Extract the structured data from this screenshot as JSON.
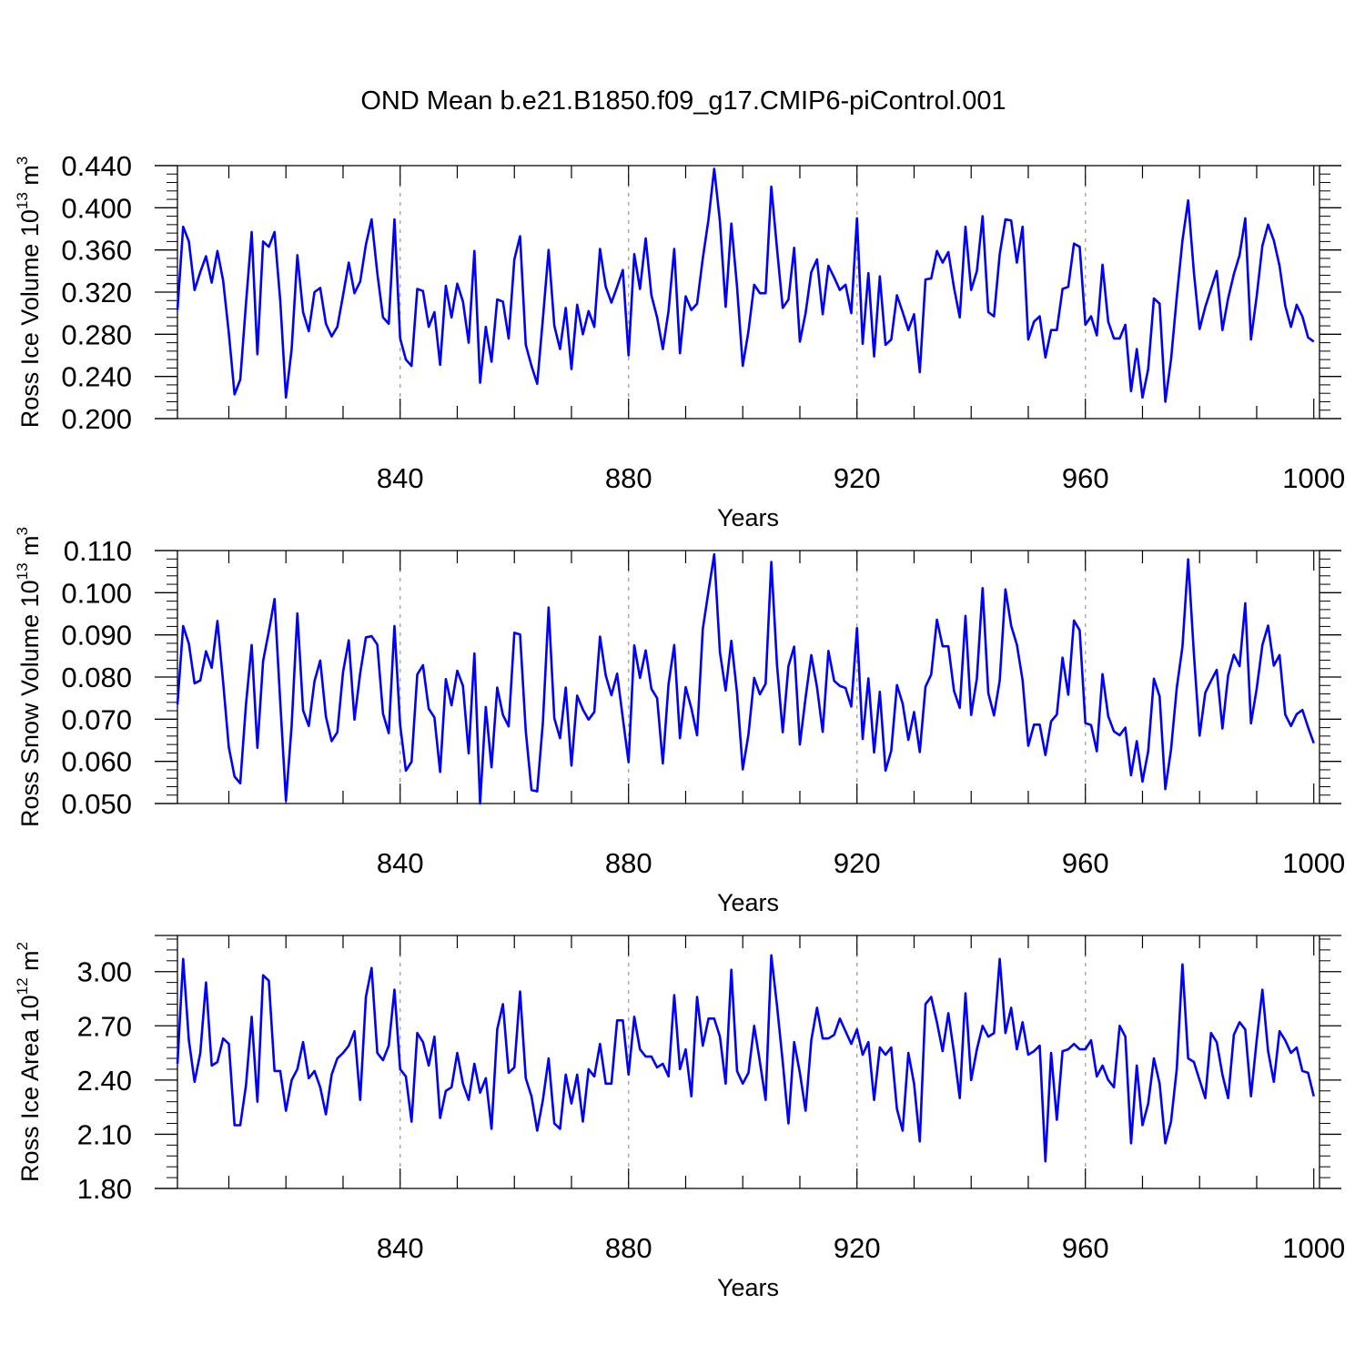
{
  "title": "OND Mean b.e21.B1850.f09_g17.CMIP6-piControl.001",
  "colors": {
    "line": "#0000ff",
    "axes": "#000000",
    "ref_lines": "#aaaaaa"
  },
  "chart_data": [
    {
      "type": "line",
      "ylabel_main": "Ross Ice Volume 10",
      "ylabel_exp": "13",
      "ylabel_unit": " m",
      "ylabel_unit_exp": "3",
      "xlabel": "Years",
      "xlim": [
        801,
        1001
      ],
      "ylim": [
        0.2,
        0.44
      ],
      "yticks": [
        0.2,
        0.24,
        0.28,
        0.32,
        0.36,
        0.4,
        0.44
      ],
      "ytick_labels": [
        "0.200",
        "0.240",
        "0.280",
        "0.320",
        "0.360",
        "0.400",
        "0.440"
      ],
      "xticks": [
        840,
        880,
        920,
        960,
        1000
      ],
      "xtick_labels": [
        "840",
        "880",
        "920",
        "960",
        "1000"
      ],
      "ref_lines_x": [
        840,
        880,
        920,
        960
      ],
      "x_start": 801,
      "values": [
        0.303,
        0.382,
        0.368,
        0.322,
        0.339,
        0.354,
        0.329,
        0.359,
        0.331,
        0.281,
        0.223,
        0.237,
        0.309,
        0.377,
        0.261,
        0.368,
        0.363,
        0.377,
        0.312,
        0.22,
        0.266,
        0.355,
        0.301,
        0.283,
        0.32,
        0.324,
        0.29,
        0.278,
        0.287,
        0.317,
        0.348,
        0.319,
        0.33,
        0.365,
        0.389,
        0.338,
        0.296,
        0.29,
        0.389,
        0.276,
        0.256,
        0.25,
        0.323,
        0.321,
        0.287,
        0.301,
        0.251,
        0.326,
        0.296,
        0.328,
        0.311,
        0.272,
        0.359,
        0.234,
        0.287,
        0.254,
        0.313,
        0.311,
        0.276,
        0.351,
        0.373,
        0.27,
        0.25,
        0.233,
        0.295,
        0.36,
        0.288,
        0.266,
        0.305,
        0.247,
        0.308,
        0.28,
        0.302,
        0.287,
        0.361,
        0.325,
        0.31,
        0.325,
        0.341,
        0.26,
        0.356,
        0.323,
        0.371,
        0.317,
        0.296,
        0.266,
        0.302,
        0.361,
        0.262,
        0.316,
        0.303,
        0.309,
        0.352,
        0.389,
        0.437,
        0.387,
        0.306,
        0.385,
        0.325,
        0.25,
        0.283,
        0.327,
        0.319,
        0.319,
        0.42,
        0.361,
        0.305,
        0.313,
        0.362,
        0.273,
        0.3,
        0.339,
        0.351,
        0.299,
        0.345,
        0.334,
        0.322,
        0.327,
        0.3,
        0.39,
        0.271,
        0.338,
        0.259,
        0.335,
        0.27,
        0.275,
        0.317,
        0.301,
        0.284,
        0.299,
        0.244,
        0.332,
        0.333,
        0.359,
        0.348,
        0.358,
        0.324,
        0.296,
        0.382,
        0.322,
        0.34,
        0.392,
        0.301,
        0.297,
        0.356,
        0.389,
        0.388,
        0.348,
        0.382,
        0.275,
        0.292,
        0.297,
        0.258,
        0.284,
        0.284,
        0.323,
        0.325,
        0.366,
        0.363,
        0.289,
        0.297,
        0.279,
        0.346,
        0.292,
        0.276,
        0.276,
        0.289,
        0.226,
        0.266,
        0.22,
        0.247,
        0.314,
        0.309,
        0.216,
        0.256,
        0.315,
        0.369,
        0.407,
        0.339,
        0.285,
        0.306,
        0.323,
        0.34,
        0.284,
        0.314,
        0.337,
        0.355,
        0.39,
        0.275,
        0.316,
        0.364,
        0.384,
        0.369,
        0.345,
        0.307,
        0.287,
        0.308,
        0.297,
        0.277,
        0.273
      ]
    },
    {
      "type": "line",
      "ylabel_main": "Ross Snow Volume 10",
      "ylabel_exp": "13",
      "ylabel_unit": " m",
      "ylabel_unit_exp": "3",
      "xlabel": "Years",
      "xlim": [
        801,
        1001
      ],
      "ylim": [
        0.05,
        0.11
      ],
      "yticks": [
        0.05,
        0.06,
        0.07,
        0.08,
        0.09,
        0.1,
        0.11
      ],
      "ytick_labels": [
        "0.050",
        "0.060",
        "0.070",
        "0.080",
        "0.090",
        "0.100",
        "0.110"
      ],
      "xticks": [
        840,
        880,
        920,
        960,
        1000
      ],
      "xtick_labels": [
        "840",
        "880",
        "920",
        "960",
        "1000"
      ],
      "ref_lines_x": [
        840,
        880,
        920,
        960
      ],
      "x_start": 801,
      "values": [
        0.0735,
        0.0921,
        0.0879,
        0.0785,
        0.0792,
        0.0861,
        0.0822,
        0.0933,
        0.0788,
        0.0633,
        0.0564,
        0.0548,
        0.0735,
        0.0876,
        0.0632,
        0.0838,
        0.0908,
        0.0985,
        0.0741,
        0.0507,
        0.0685,
        0.0951,
        0.0721,
        0.0684,
        0.079,
        0.0839,
        0.0706,
        0.0648,
        0.0669,
        0.0812,
        0.0887,
        0.0699,
        0.0809,
        0.0894,
        0.0897,
        0.0877,
        0.0713,
        0.0667,
        0.0921,
        0.0686,
        0.0578,
        0.0599,
        0.0806,
        0.0828,
        0.0725,
        0.0704,
        0.0575,
        0.0795,
        0.0733,
        0.0815,
        0.0779,
        0.0619,
        0.0856,
        0.05,
        0.0729,
        0.0586,
        0.0775,
        0.071,
        0.0683,
        0.0905,
        0.0901,
        0.0672,
        0.0532,
        0.0529,
        0.0693,
        0.0965,
        0.0702,
        0.0655,
        0.0775,
        0.059,
        0.0756,
        0.0723,
        0.0699,
        0.0717,
        0.0896,
        0.0804,
        0.0757,
        0.0808,
        0.0702,
        0.0598,
        0.0875,
        0.0798,
        0.0863,
        0.0772,
        0.075,
        0.0595,
        0.0783,
        0.0876,
        0.0655,
        0.0776,
        0.0726,
        0.0662,
        0.0914,
        0.1004,
        0.1091,
        0.0859,
        0.0768,
        0.0886,
        0.0762,
        0.0581,
        0.0664,
        0.0798,
        0.0759,
        0.0784,
        0.1073,
        0.0828,
        0.0669,
        0.0826,
        0.0872,
        0.064,
        0.0751,
        0.0852,
        0.0776,
        0.067,
        0.0862,
        0.0791,
        0.0779,
        0.0774,
        0.073,
        0.0916,
        0.0653,
        0.0797,
        0.0621,
        0.0765,
        0.0578,
        0.0625,
        0.0781,
        0.0737,
        0.0651,
        0.0717,
        0.0622,
        0.0777,
        0.0806,
        0.0936,
        0.0873,
        0.0873,
        0.0767,
        0.0727,
        0.0945,
        0.071,
        0.0797,
        0.1011,
        0.0762,
        0.0709,
        0.0792,
        0.1008,
        0.0922,
        0.0877,
        0.0793,
        0.0637,
        0.0687,
        0.0687,
        0.0615,
        0.0695,
        0.0711,
        0.0846,
        0.0758,
        0.0934,
        0.0911,
        0.0691,
        0.0686,
        0.0624,
        0.0807,
        0.0707,
        0.0671,
        0.0662,
        0.068,
        0.0567,
        0.0648,
        0.0552,
        0.0624,
        0.0796,
        0.0754,
        0.0534,
        0.0628,
        0.0774,
        0.0872,
        0.1079,
        0.0856,
        0.0661,
        0.0763,
        0.0791,
        0.0817,
        0.0678,
        0.0804,
        0.0853,
        0.0826,
        0.0975,
        0.069,
        0.0772,
        0.0876,
        0.0922,
        0.0827,
        0.0852,
        0.0711,
        0.0684,
        0.0712,
        0.0722,
        0.0681,
        0.0643
      ]
    },
    {
      "type": "line",
      "ylabel_main": "Ross Ice Area 10",
      "ylabel_exp": "12",
      "ylabel_unit": " m",
      "ylabel_unit_exp": "2",
      "xlabel": "Years",
      "xlim": [
        801,
        1001
      ],
      "ylim": [
        1.8,
        3.2
      ],
      "yticks": [
        1.8,
        2.1,
        2.4,
        2.7,
        3.0
      ],
      "ytick_labels": [
        "1.80",
        "2.10",
        "2.40",
        "2.70",
        "3.00"
      ],
      "xticks": [
        840,
        880,
        920,
        960,
        1000
      ],
      "xtick_labels": [
        "840",
        "880",
        "920",
        "960",
        "1000"
      ],
      "ref_lines_x": [
        840,
        880,
        920,
        960
      ],
      "x_start": 801,
      "values": [
        2.49,
        3.07,
        2.62,
        2.39,
        2.55,
        2.94,
        2.48,
        2.5,
        2.63,
        2.6,
        2.15,
        2.15,
        2.37,
        2.75,
        2.28,
        2.98,
        2.95,
        2.45,
        2.45,
        2.23,
        2.4,
        2.46,
        2.61,
        2.41,
        2.45,
        2.36,
        2.21,
        2.43,
        2.52,
        2.55,
        2.59,
        2.67,
        2.29,
        2.86,
        3.02,
        2.55,
        2.51,
        2.59,
        2.9,
        2.46,
        2.42,
        2.17,
        2.66,
        2.61,
        2.48,
        2.64,
        2.19,
        2.34,
        2.36,
        2.55,
        2.38,
        2.29,
        2.49,
        2.33,
        2.41,
        2.13,
        2.68,
        2.82,
        2.44,
        2.47,
        2.89,
        2.41,
        2.31,
        2.12,
        2.29,
        2.52,
        2.16,
        2.13,
        2.43,
        2.27,
        2.43,
        2.17,
        2.46,
        2.42,
        2.6,
        2.38,
        2.38,
        2.73,
        2.73,
        2.43,
        2.75,
        2.57,
        2.53,
        2.53,
        2.47,
        2.49,
        2.42,
        2.87,
        2.46,
        2.57,
        2.31,
        2.86,
        2.59,
        2.74,
        2.74,
        2.64,
        2.38,
        3.01,
        2.45,
        2.38,
        2.44,
        2.7,
        2.5,
        2.29,
        3.09,
        2.81,
        2.5,
        2.16,
        2.61,
        2.44,
        2.23,
        2.62,
        2.8,
        2.63,
        2.63,
        2.65,
        2.74,
        2.67,
        2.6,
        2.68,
        2.54,
        2.61,
        2.29,
        2.58,
        2.54,
        2.58,
        2.24,
        2.12,
        2.55,
        2.38,
        2.06,
        2.82,
        2.86,
        2.72,
        2.56,
        2.77,
        2.55,
        2.3,
        2.88,
        2.4,
        2.57,
        2.7,
        2.64,
        2.66,
        3.07,
        2.66,
        2.8,
        2.57,
        2.72,
        2.54,
        2.56,
        2.59,
        1.95,
        2.55,
        2.18,
        2.56,
        2.57,
        2.6,
        2.57,
        2.57,
        2.62,
        2.42,
        2.48,
        2.4,
        2.36,
        2.7,
        2.64,
        2.05,
        2.48,
        2.15,
        2.27,
        2.52,
        2.38,
        2.05,
        2.17,
        2.46,
        3.04,
        2.52,
        2.5,
        2.4,
        2.3,
        2.66,
        2.61,
        2.43,
        2.3,
        2.65,
        2.72,
        2.68,
        2.31,
        2.62,
        2.9,
        2.56,
        2.39,
        2.67,
        2.62,
        2.55,
        2.58,
        2.45,
        2.44,
        2.31
      ]
    }
  ]
}
